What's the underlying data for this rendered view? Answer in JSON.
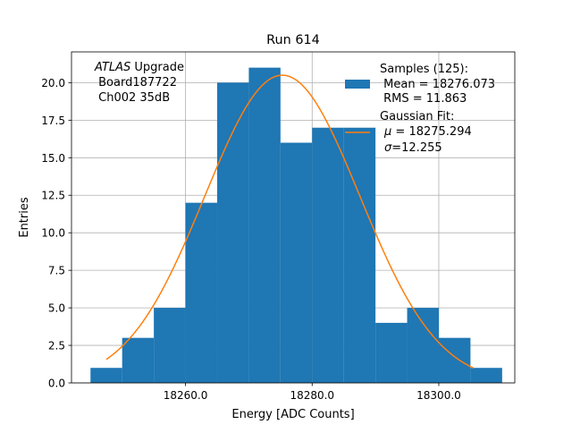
{
  "chart_data": {
    "type": "bar",
    "title": "Run 614",
    "xlabel": "Energy [ADC Counts]",
    "ylabel": "Entries",
    "xlim": [
      18242,
      18312
    ],
    "ylim": [
      0,
      22.05
    ],
    "xticks": [
      18260,
      18280,
      18300
    ],
    "xtick_labels": [
      "18260.0",
      "18280.0",
      "18300.0"
    ],
    "yticks": [
      0,
      2.5,
      5,
      7.5,
      10,
      12.5,
      15,
      17.5,
      20
    ],
    "ytick_labels": [
      "0.0",
      "2.5",
      "5.0",
      "7.5",
      "10.0",
      "12.5",
      "15.0",
      "17.5",
      "20.0"
    ],
    "grid": true,
    "histogram": {
      "bin_edges": [
        18245,
        18250,
        18255,
        18260,
        18265,
        18270,
        18275,
        18280,
        18285,
        18290,
        18295,
        18300,
        18305,
        18310
      ],
      "counts": [
        1,
        3,
        5,
        12,
        20,
        21,
        16,
        17,
        17,
        4,
        5,
        3,
        1
      ],
      "color": "#1f77b4"
    },
    "fit": {
      "mu": 18275.294,
      "sigma": 12.255,
      "amplitude": 20.5,
      "x_range": [
        18247.5,
        18305.5
      ],
      "color": "#ff7f0e"
    },
    "annotation": {
      "line1_italic": "ATLAS",
      "line1_rest": " Upgrade",
      "line2": " Board187722",
      "line3": " Ch002 35dB"
    },
    "legend": {
      "position": "upper right",
      "samples_line1": "Samples (125):",
      "samples_line2": " Mean = 18276.073",
      "samples_line3": " RMS = 11.863",
      "fit_line1": "Gaussian Fit:",
      "fit_mu_symbol": "μ",
      "fit_mu_value": " = 18275.294",
      "fit_sigma_symbol": "σ",
      "fit_sigma_value": "=12.255"
    }
  }
}
